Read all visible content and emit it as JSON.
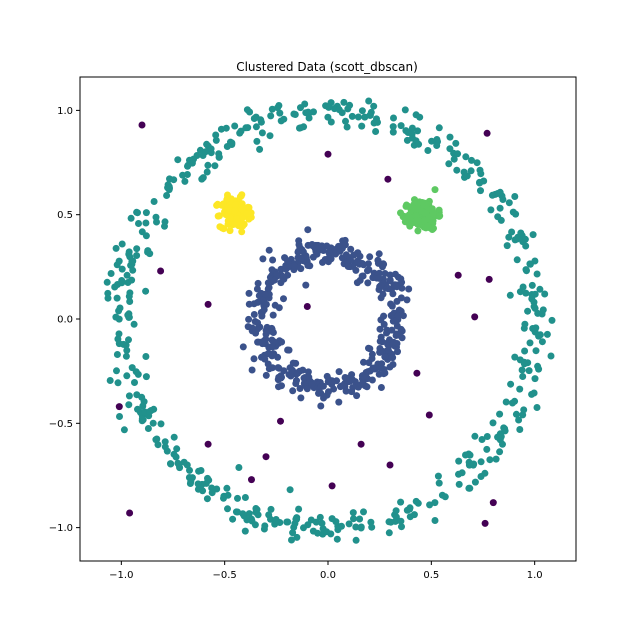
{
  "chart_data": {
    "type": "scatter",
    "title": "Clustered Data (scott_dbscan)",
    "xlabel": "",
    "ylabel": "",
    "xlim": [
      -1.2,
      1.2
    ],
    "ylim": [
      -1.16,
      1.16
    ],
    "x_ticks": [
      -1.0,
      -0.5,
      0.0,
      0.5,
      1.0
    ],
    "y_ticks": [
      -1.0,
      -0.5,
      0.0,
      0.5,
      1.0
    ],
    "x_tick_labels": [
      "−1.0",
      "−0.5",
      "0.0",
      "0.5",
      "1.0"
    ],
    "y_tick_labels": [
      "−1.0",
      "−0.5",
      "0.0",
      "0.5",
      "1.0"
    ],
    "grid": false,
    "legend": "none",
    "colors": {
      "noise": "#440154",
      "inner_ring": "#3b528b",
      "outer_ring": "#21918c",
      "right_blob": "#5ec962",
      "left_blob": "#fde725"
    },
    "clusters": [
      {
        "label": -1,
        "color_key": "noise",
        "points": [
          [
            -0.9,
            0.93
          ],
          [
            0.0,
            0.79
          ],
          [
            0.77,
            0.89
          ],
          [
            0.29,
            0.67
          ],
          [
            -0.81,
            0.23
          ],
          [
            -0.58,
            0.07
          ],
          [
            0.63,
            0.21
          ],
          [
            0.78,
            0.19
          ],
          [
            -0.1,
            0.06
          ],
          [
            0.71,
            0.01
          ],
          [
            -1.01,
            -0.42
          ],
          [
            -0.23,
            -0.49
          ],
          [
            0.43,
            -0.26
          ],
          [
            0.49,
            -0.46
          ],
          [
            -0.58,
            -0.6
          ],
          [
            0.16,
            -0.6
          ],
          [
            -0.3,
            -0.66
          ],
          [
            0.3,
            -0.7
          ],
          [
            -0.37,
            -0.77
          ],
          [
            0.02,
            -0.8
          ],
          [
            0.8,
            -0.88
          ],
          [
            -0.96,
            -0.93
          ],
          [
            0.76,
            -0.98
          ]
        ]
      },
      {
        "label": 0,
        "color_key": "outer_ring",
        "generator": {
          "shape": "ring",
          "center": [
            0.0,
            0.0
          ],
          "radius": 1.0,
          "noise": 0.04,
          "count": 500
        }
      },
      {
        "label": 1,
        "color_key": "inner_ring",
        "generator": {
          "shape": "ring",
          "center": [
            0.0,
            0.0
          ],
          "radius": 0.33,
          "noise": 0.035,
          "count": 420
        }
      },
      {
        "label": 2,
        "color_key": "left_blob",
        "generator": {
          "shape": "blob",
          "center": [
            -0.45,
            0.51
          ],
          "spread": 0.035,
          "count": 170
        }
      },
      {
        "label": 3,
        "color_key": "right_blob",
        "generator": {
          "shape": "blob",
          "center": [
            0.46,
            0.5
          ],
          "spread": 0.035,
          "count": 160
        }
      }
    ]
  }
}
